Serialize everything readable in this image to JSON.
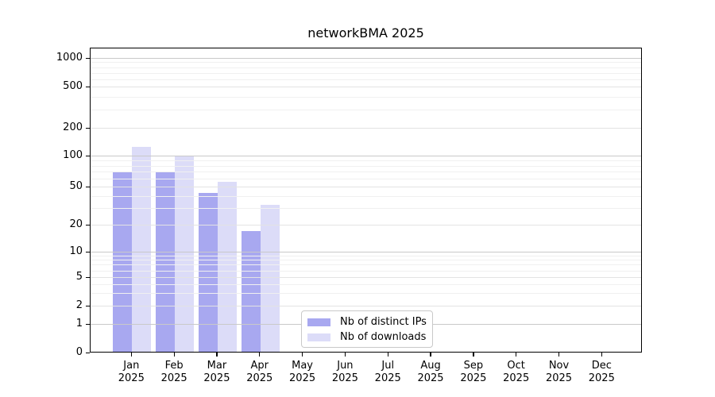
{
  "chart_data": {
    "type": "bar",
    "title": "networkBMA 2025",
    "categories": [
      "Jan",
      "Feb",
      "Mar",
      "Apr",
      "May",
      "Jun",
      "Jul",
      "Aug",
      "Sep",
      "Oct",
      "Nov",
      "Dec"
    ],
    "year": "2025",
    "series": [
      {
        "name": "Nb of distinct IPs",
        "color": "#a8a8f0",
        "values": [
          70,
          70,
          43,
          17,
          0,
          0,
          0,
          0,
          0,
          0,
          0,
          0
        ]
      },
      {
        "name": "Nb of downloads",
        "color": "#dcdcf8",
        "values": [
          125,
          100,
          56,
          32,
          0,
          0,
          0,
          0,
          0,
          0,
          0,
          0
        ]
      }
    ],
    "yticks": [
      0,
      1,
      2,
      5,
      10,
      20,
      50,
      100,
      200,
      500,
      1000
    ],
    "minor_yticks": [
      3,
      4,
      6,
      7,
      8,
      9,
      30,
      40,
      60,
      70,
      80,
      90,
      300,
      400,
      600,
      700,
      800,
      900
    ],
    "yscale": "symlog",
    "ylim": [
      0,
      1280
    ],
    "xlabel": "",
    "ylabel": "",
    "grid": "horizontal",
    "legend_position": "lower-center-left",
    "colors": {
      "decade_gridline": "#c9c9c9",
      "major_gridline": "#e3e3e3",
      "minor_gridline": "#f0f0f0",
      "spine": "#000000",
      "background": "#ffffff"
    }
  }
}
